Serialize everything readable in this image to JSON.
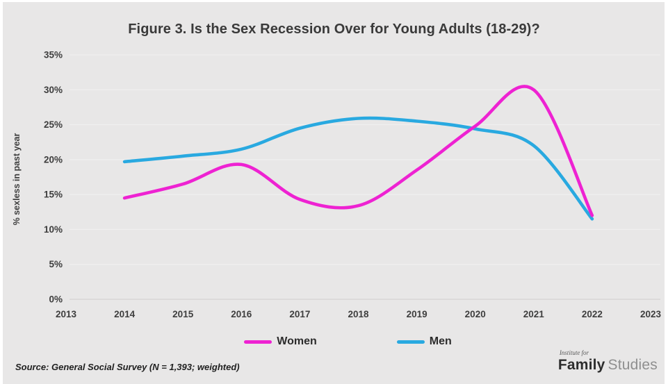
{
  "title": "Figure 3. Is the Sex Recession Over for Young Adults (18-29)?",
  "colors": {
    "background": "#e8e7e7",
    "women": "#ee22d2",
    "men": "#29a9e0",
    "grid": "#f2f2f2",
    "axis_line": "#d4d3d3",
    "label_text": "#3e3e3e"
  },
  "chart_data": {
    "type": "line",
    "title": "Figure 3. Is the Sex Recession Over for Young Adults (18-29)?",
    "xlabel": "",
    "ylabel": "% sexless in past year",
    "x": [
      2014,
      2015,
      2016,
      2017,
      2018,
      2019,
      2020,
      2021,
      2022
    ],
    "series": [
      {
        "name": "Women",
        "color": "#ee22d2",
        "values": [
          14.5,
          16.5,
          19.3,
          14.3,
          13.4,
          18.5,
          24.8,
          30.0,
          12.0
        ]
      },
      {
        "name": "Men",
        "color": "#29a9e0",
        "values": [
          19.7,
          20.5,
          21.5,
          24.5,
          25.9,
          25.5,
          24.4,
          22.0,
          11.5
        ]
      }
    ],
    "x_ticks": [
      2013,
      2014,
      2015,
      2016,
      2017,
      2018,
      2019,
      2020,
      2021,
      2022,
      2023
    ],
    "ylim": [
      0,
      35
    ],
    "y_tick_step": 5,
    "y_tick_suffix": "%",
    "grid": true,
    "smooth": true,
    "legend_position": "bottom"
  },
  "legend": {
    "women_label": "Women",
    "men_label": "Men"
  },
  "source_note": "Source: General Social Survey (N = 1,393; weighted)",
  "logo": {
    "line1": "Institute for",
    "word_bold": "Family",
    "word_light": "Studies"
  }
}
